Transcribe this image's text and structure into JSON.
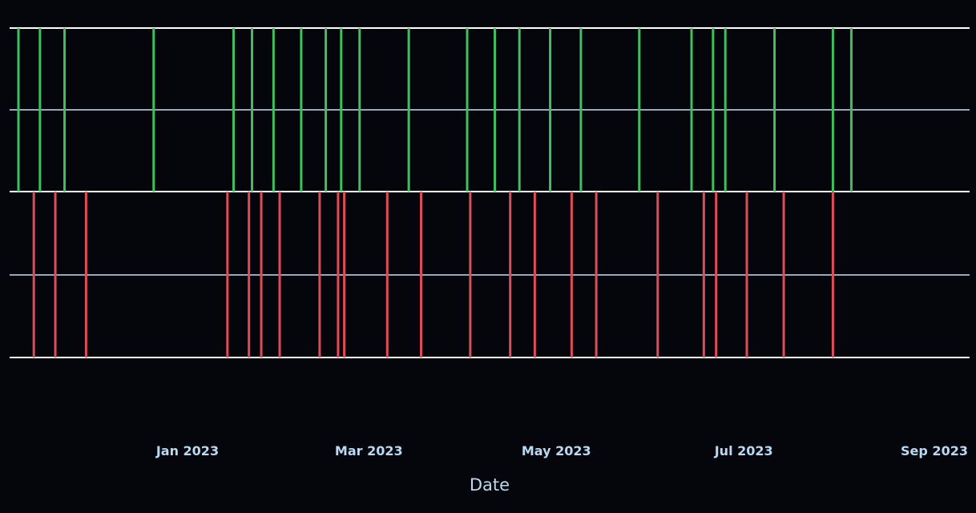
{
  "chart_data": {
    "type": "event-strip",
    "xlabel": "Date",
    "x_range": [
      "2022-11-01",
      "2023-09-01"
    ],
    "x_ticks": [
      {
        "date": "2023-01-01",
        "label": "Jan 2023"
      },
      {
        "date": "2023-03-01",
        "label": "Mar 2023"
      },
      {
        "date": "2023-05-01",
        "label": "May 2023"
      },
      {
        "date": "2023-07-01",
        "label": "Jul 2023"
      },
      {
        "date": "2023-09-01",
        "label": "Sep 2023"
      }
    ],
    "series": [
      {
        "band": "upper",
        "color": "#3fbf5f",
        "dates": [
          "2022-11-07",
          "2022-11-14",
          "2022-11-22",
          "2022-12-21",
          "2023-01-16",
          "2023-01-22",
          "2023-01-29",
          "2023-02-07",
          "2023-02-15",
          "2023-02-20",
          "2023-02-26",
          "2023-03-14",
          "2023-04-02",
          "2023-04-11",
          "2023-04-19",
          "2023-04-29",
          "2023-05-09",
          "2023-05-28",
          "2023-06-14",
          "2023-06-21",
          "2023-06-25",
          "2023-07-11",
          "2023-07-30",
          "2023-08-05"
        ]
      },
      {
        "band": "lower",
        "color": "#e04b5a",
        "dates": [
          "2022-11-12",
          "2022-11-19",
          "2022-11-29",
          "2023-01-14",
          "2023-01-21",
          "2023-01-25",
          "2023-01-31",
          "2023-02-13",
          "2023-02-19",
          "2023-02-21",
          "2023-03-07",
          "2023-03-18",
          "2023-04-03",
          "2023-04-16",
          "2023-04-24",
          "2023-05-06",
          "2023-05-14",
          "2023-06-03",
          "2023-06-18",
          "2023-06-22",
          "2023-07-02",
          "2023-07-14",
          "2023-07-30"
        ]
      }
    ],
    "grid": true,
    "colors": {
      "background": "#05060b",
      "grid_line": "#ffffff",
      "mid_line": "#9aa9b9",
      "tick_text": "#b9d8f2"
    }
  }
}
